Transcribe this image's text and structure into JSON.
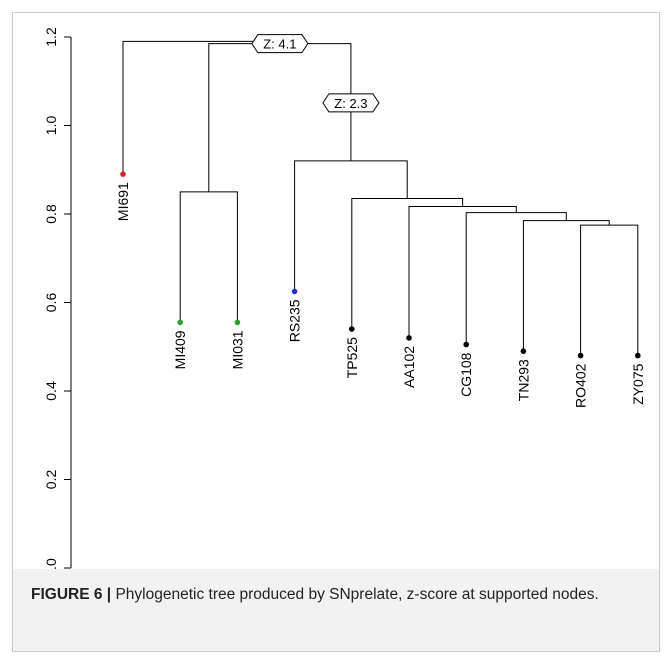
{
  "caption": {
    "label": "FIGURE 6 |",
    "text": " Phylogenetic tree produced by SNprelate, z-score at supported nodes."
  },
  "chart_data": {
    "type": "dendrogram",
    "ylim": [
      0,
      1.2
    ],
    "y_ticks": [
      0.0,
      0.2,
      0.4,
      0.6,
      0.8,
      1.0,
      1.2
    ],
    "leaves": [
      {
        "name": "MI691",
        "height": 0.89,
        "color": "#e41a1c"
      },
      {
        "name": "MI409",
        "height": 0.555,
        "color": "#2ca02c"
      },
      {
        "name": "MI031",
        "height": 0.555,
        "color": "#2ca02c"
      },
      {
        "name": "RS235",
        "height": 0.625,
        "color": "#1f2fd6"
      },
      {
        "name": "TP525",
        "height": 0.54,
        "color": "#000000"
      },
      {
        "name": "AA102",
        "height": 0.52,
        "color": "#000000"
      },
      {
        "name": "CG108",
        "height": 0.505,
        "color": "#000000"
      },
      {
        "name": "TN293",
        "height": 0.49,
        "color": "#000000"
      },
      {
        "name": "RO402",
        "height": 0.48,
        "color": "#000000"
      },
      {
        "name": "ZY075",
        "height": 0.48,
        "color": "#000000"
      }
    ],
    "merges": [
      {
        "id": "n_mi",
        "left": "MI409",
        "right": "MI031",
        "height": 0.85
      },
      {
        "id": "n_rz",
        "left": "RO402",
        "right": "ZY075",
        "height": 0.775
      },
      {
        "id": "n_tn",
        "left": "TN293",
        "right": "n_rz",
        "height": 0.785
      },
      {
        "id": "n_cg",
        "left": "CG108",
        "right": "n_tn",
        "height": 0.803
      },
      {
        "id": "n_aa",
        "left": "AA102",
        "right": "n_cg",
        "height": 0.817
      },
      {
        "id": "n_tp",
        "left": "TP525",
        "right": "n_aa",
        "height": 0.835
      },
      {
        "id": "n_rs",
        "left": "RS235",
        "right": "n_tp",
        "height": 0.92
      },
      {
        "id": "n_inner",
        "left": "n_mi",
        "right": "n_rs",
        "height": 1.185
      },
      {
        "id": "n_root",
        "left": "MI691",
        "right": "n_inner",
        "height": 1.19
      }
    ],
    "node_labels": [
      {
        "node": "n_inner",
        "text": "Z: 4.1"
      },
      {
        "node": "n_rs",
        "text": "Z: 2.3"
      }
    ]
  }
}
